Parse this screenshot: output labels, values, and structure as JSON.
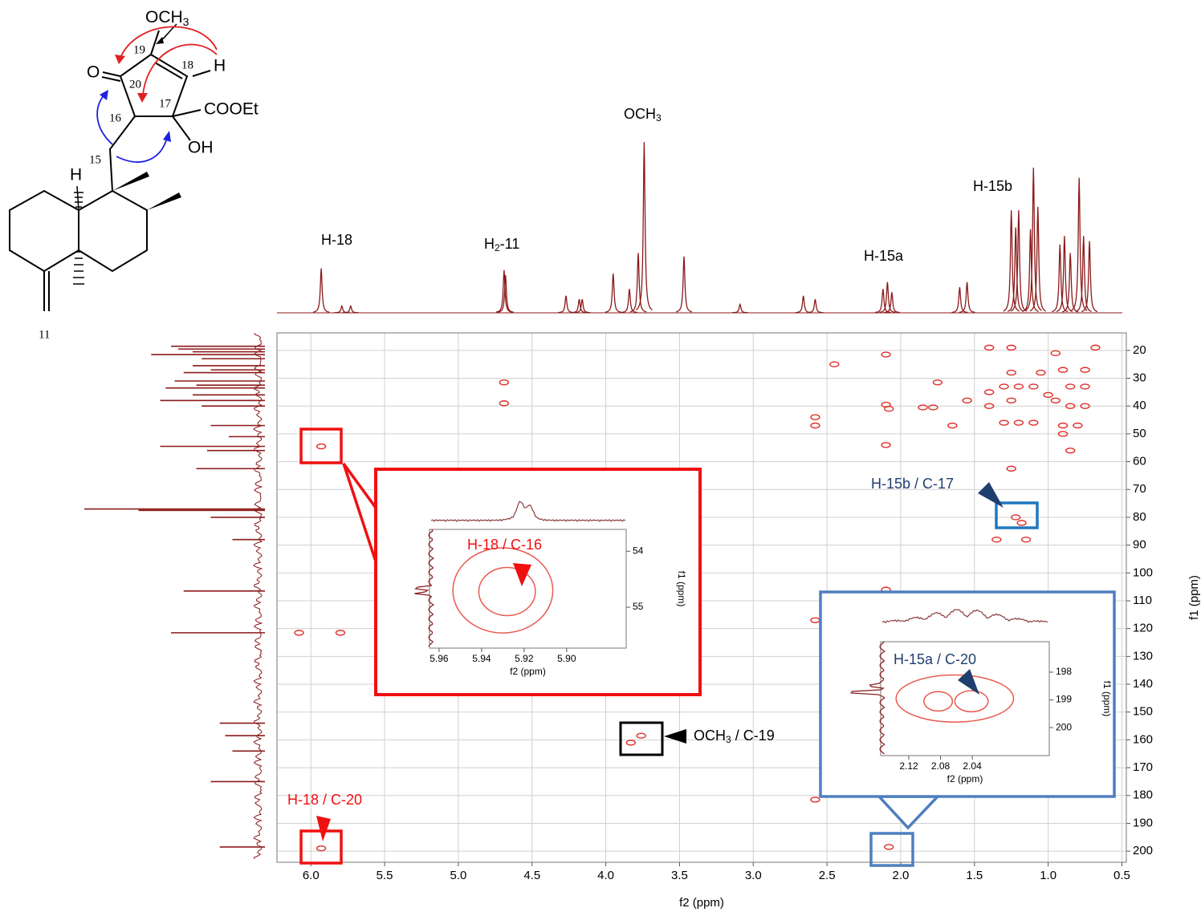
{
  "structure": {
    "labels": [
      "OCH",
      "3",
      "19",
      "18",
      "H",
      "O",
      "20",
      "17",
      "COOEt",
      "16",
      "OH",
      "15",
      "H",
      "11"
    ]
  },
  "chart_data": [
    {
      "type": "scatter",
      "x_label": "f2 (ppm)",
      "y_label": "f1 (ppm)",
      "color": "#e0302a",
      "xlim": [
        6.23,
        0.47
      ],
      "ylim": [
        13.7,
        204
      ],
      "grid": true,
      "xticks": [
        {
          "value": 6,
          "label": "6.0"
        },
        5.5,
        {
          "value": 5,
          "label": "5.0"
        },
        4.5,
        {
          "value": 4,
          "label": "4.0"
        },
        3.5,
        {
          "value": 3,
          "label": "3.0"
        },
        2.5,
        {
          "value": 2,
          "label": "2.0"
        },
        1.5,
        {
          "value": 1,
          "label": "1.0"
        },
        0.5
      ],
      "yticks": [
        20,
        30,
        40,
        50,
        60,
        70,
        80,
        90,
        100,
        110,
        120,
        130,
        140,
        150,
        160,
        170,
        180,
        190,
        200
      ],
      "x": [
        5.93,
        6.08,
        5.8,
        5.93,
        4.69,
        4.69,
        3.76,
        3.83,
        2.58,
        2.58,
        2.58,
        2.58,
        2.45,
        2.1,
        2.1,
        2.08,
        2.1,
        2.08,
        2.1,
        1.85,
        1.78,
        1.75,
        1.65,
        1.55,
        1.4,
        1.4,
        1.4,
        1.25,
        1.25,
        1.25,
        1.25,
        1.22,
        1.18,
        1.15,
        1.35,
        0.95,
        0.9,
        0.75,
        0.85,
        0.75,
        0.95,
        0.85,
        0.75,
        0.9,
        0.8,
        0.85,
        0.9,
        0.68,
        1.1,
        1.0,
        1.1,
        1.2,
        1.3,
        1.2,
        1.3,
        1.05
      ],
      "values": [
        54.5,
        121.5,
        121.5,
        199,
        31.5,
        39,
        158.5,
        161,
        117,
        181.5,
        44,
        47,
        25,
        21.5,
        39.5,
        41,
        54,
        198.5,
        106,
        40.5,
        40.5,
        31.5,
        47,
        38,
        19,
        35,
        40,
        19,
        28,
        38,
        62.5,
        80,
        82,
        88,
        88,
        21,
        27,
        27,
        33,
        33,
        38,
        40,
        40,
        47,
        47,
        56,
        50,
        19,
        33,
        36,
        46,
        46,
        46,
        33,
        33,
        28
      ],
      "proton_spectrum": {
        "ppm": [
          5.93,
          5.79,
          5.73,
          4.69,
          4.68,
          4.27,
          4.18,
          4.16,
          3.95,
          3.84,
          3.78,
          3.74,
          3.47,
          3.09,
          2.66,
          2.58,
          2.12,
          2.09,
          2.06,
          1.6,
          1.55,
          1.25,
          1.22,
          1.2,
          1.12,
          1.1,
          1.07,
          0.92,
          0.89,
          0.85,
          0.79,
          0.76,
          0.72
        ],
        "intensity": [
          26,
          4,
          4,
          25,
          22,
          10,
          8,
          8,
          23,
          14,
          35,
          100,
          33,
          5,
          10,
          8,
          14,
          18,
          12,
          15,
          18,
          60,
          50,
          60,
          49,
          85,
          62,
          40,
          45,
          35,
          79,
          45,
          42
        ]
      },
      "carbon_spectrum": {
        "ppm": [
          18.5,
          19.5,
          20.5,
          21.5,
          23,
          25.5,
          27,
          28,
          31,
          32.5,
          33.5,
          36,
          38,
          40,
          47,
          51,
          54.5,
          56,
          62.5,
          77,
          77.5,
          80,
          88,
          106.5,
          121.5,
          154,
          158.5,
          164,
          175,
          198.5
        ],
        "intensity": [
          52,
          48,
          40,
          63,
          35,
          40,
          30,
          45,
          50,
          38,
          55,
          40,
          58,
          35,
          30,
          20,
          58,
          32,
          38,
          100,
          70,
          30,
          18,
          45,
          52,
          25,
          22,
          18,
          30,
          25
        ]
      },
      "spectrum_labels": [
        {
          "text": "H-18"
        },
        {
          "text": "H",
          "sub": "2",
          "rest": "-11"
        },
        {
          "text": "OCH",
          "sub": "3"
        },
        {
          "text": "H-15a"
        },
        {
          "text": "H-15b"
        }
      ],
      "annotations": [
        {
          "text": "H-15b / C-17"
        },
        {
          "text": "OCH",
          "sub": "3",
          "rest": " / C-19"
        },
        {
          "text": "H-18 / C-20"
        }
      ]
    },
    {
      "type": "contour",
      "title": "H-18 / C-16",
      "x_label": "f2 (ppm)",
      "y_label": "f1 (ppm)",
      "color": "#e85a50",
      "xlim": [
        5.9645,
        5.872
      ],
      "ylim": [
        53.61,
        55.73
      ],
      "xticks": [
        5.96,
        5.94,
        5.92,
        {
          "value": 5.9,
          "label": "5.90"
        }
      ],
      "yticks": [
        54,
        55
      ],
      "contours": [
        {
          "x": 5.93,
          "y": 54.7,
          "rx": 0.0235,
          "ry": 0.76
        },
        {
          "x": 5.928,
          "y": 54.72,
          "rx": 0.0133,
          "ry": 0.43
        }
      ]
    },
    {
      "type": "contour",
      "title": "H-15a / C-20",
      "x_label": "f2 (ppm)",
      "y_label": "f1 (ppm)",
      "color": "#e85a50",
      "xlim": [
        2.1554,
        1.943
      ],
      "ylim": [
        196.9,
        201.01
      ],
      "xticks": [
        2.12,
        2.08,
        2.04
      ],
      "yticks": [
        198,
        199,
        200
      ],
      "contours": [
        {
          "x": 2.062,
          "y": 198.95,
          "rx": 0.074,
          "ry": 0.85
        },
        {
          "x": 2.083,
          "y": 199.05,
          "rx": 0.018,
          "ry": 0.35
        },
        {
          "x": 2.041,
          "y": 199.05,
          "rx": 0.021,
          "ry": 0.38
        }
      ]
    }
  ]
}
